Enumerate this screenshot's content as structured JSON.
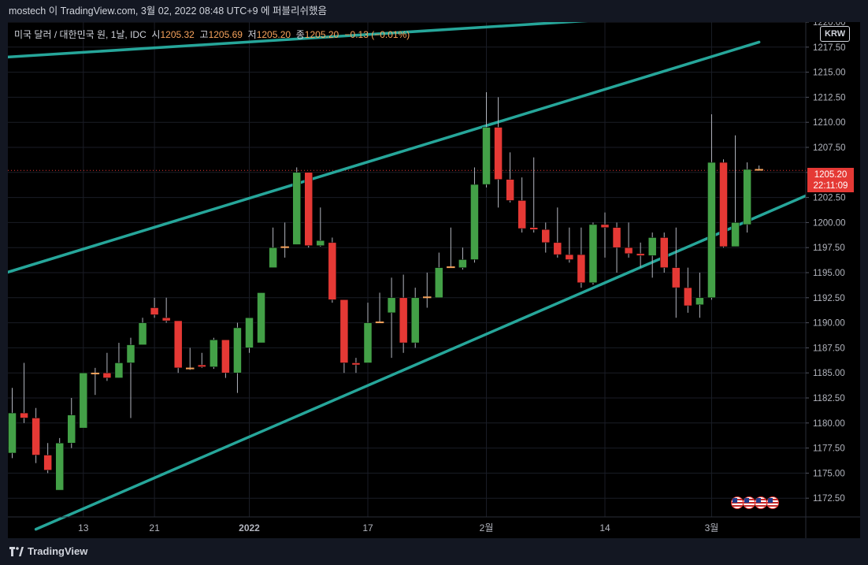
{
  "header": {
    "attribution": "mostech 이 TradingView.com, 3월 02, 2022 08:48 UTC+9 에 퍼블리쉬했음"
  },
  "legend": {
    "symbol": "미국 달러 / 대한민국 원, 1날, IDC",
    "open_label": "시",
    "open": "1205.32",
    "high_label": "고",
    "high": "1205.69",
    "low_label": "저",
    "low": "1205.20",
    "close_label": "종",
    "close": "1205.20",
    "change": "−0.13 (−0.01%)"
  },
  "currency": "KRW",
  "last_price": {
    "price": "1205.20",
    "countdown": "22:11:09"
  },
  "footer": {
    "brand": "TradingView"
  },
  "colors": {
    "up": "#43a047",
    "down": "#e53935",
    "channel": "#26a69a",
    "background": "#000000",
    "frame": "#131722",
    "doji": "#f7a35c"
  },
  "chart_data": {
    "type": "candlestick",
    "y_range": [
      1170.0,
      1220.0
    ],
    "y_ticks": [
      "1172.50",
      "1175.00",
      "1177.50",
      "1180.00",
      "1182.50",
      "1185.00",
      "1187.50",
      "1190.00",
      "1192.50",
      "1195.00",
      "1197.50",
      "1200.00",
      "1202.50",
      "1205.00",
      "1207.50",
      "1210.00",
      "1212.50",
      "1215.00",
      "1217.50",
      "1220.00"
    ],
    "x_ticks": [
      {
        "label": "13",
        "index": 6,
        "bold": false
      },
      {
        "label": "21",
        "index": 12,
        "bold": false
      },
      {
        "label": "2022",
        "index": 20,
        "bold": true
      },
      {
        "label": "17",
        "index": 30,
        "bold": false
      },
      {
        "label": "2월",
        "index": 40,
        "bold": false
      },
      {
        "label": "14",
        "index": 50,
        "bold": false
      },
      {
        "label": "3월",
        "index": 59,
        "bold": false
      }
    ],
    "candles": [
      {
        "o": 1177.0,
        "h": 1183.5,
        "l": 1176.5,
        "c": 1181.0
      },
      {
        "o": 1181.0,
        "h": 1186.0,
        "l": 1180.0,
        "c": 1180.5
      },
      {
        "o": 1180.5,
        "h": 1181.5,
        "l": 1176.0,
        "c": 1176.8
      },
      {
        "o": 1176.8,
        "h": 1178.0,
        "l": 1175.0,
        "c": 1175.3
      },
      {
        "o": 1173.3,
        "h": 1178.5,
        "l": 1173.3,
        "c": 1178.0
      },
      {
        "o": 1178.0,
        "h": 1182.5,
        "l": 1177.5,
        "c": 1180.8
      },
      {
        "o": 1179.5,
        "h": 1185.0,
        "l": 1179.5,
        "c": 1185.0
      },
      {
        "o": 1185.0,
        "h": 1185.5,
        "l": 1182.8,
        "c": 1185.0
      },
      {
        "o": 1185.0,
        "h": 1187.0,
        "l": 1184.2,
        "c": 1184.5
      },
      {
        "o": 1184.5,
        "h": 1188.0,
        "l": 1184.5,
        "c": 1186.0
      },
      {
        "o": 1186.0,
        "h": 1188.5,
        "l": 1180.5,
        "c": 1187.8
      },
      {
        "o": 1187.8,
        "h": 1190.5,
        "l": 1187.8,
        "c": 1190.0
      },
      {
        "o": 1191.5,
        "h": 1192.5,
        "l": 1190.5,
        "c": 1190.8
      },
      {
        "o": 1190.5,
        "h": 1192.5,
        "l": 1190.0,
        "c": 1190.2
      },
      {
        "o": 1190.2,
        "h": 1190.2,
        "l": 1185.0,
        "c": 1185.5
      },
      {
        "o": 1185.5,
        "h": 1187.5,
        "l": 1185.3,
        "c": 1185.4
      },
      {
        "o": 1185.8,
        "h": 1187.0,
        "l": 1185.5,
        "c": 1185.6
      },
      {
        "o": 1185.6,
        "h": 1188.5,
        "l": 1185.4,
        "c": 1188.3
      },
      {
        "o": 1188.3,
        "h": 1188.3,
        "l": 1184.5,
        "c": 1185.0
      },
      {
        "o": 1185.0,
        "h": 1190.0,
        "l": 1183.0,
        "c": 1189.5
      },
      {
        "o": 1187.5,
        "h": 1190.5,
        "l": 1187.0,
        "c": 1190.5
      },
      {
        "o": 1188.0,
        "h": 1193.0,
        "l": 1188.0,
        "c": 1193.0
      },
      {
        "o": 1195.5,
        "h": 1199.5,
        "l": 1195.5,
        "c": 1197.5
      },
      {
        "o": 1197.5,
        "h": 1200.0,
        "l": 1196.5,
        "c": 1197.6
      },
      {
        "o": 1197.8,
        "h": 1205.5,
        "l": 1197.8,
        "c": 1205.0
      },
      {
        "o": 1205.0,
        "h": 1205.0,
        "l": 1197.5,
        "c": 1197.7
      },
      {
        "o": 1197.7,
        "h": 1201.5,
        "l": 1197.6,
        "c": 1198.2
      },
      {
        "o": 1198.0,
        "h": 1198.5,
        "l": 1192.0,
        "c": 1192.3
      },
      {
        "o": 1192.3,
        "h": 1192.3,
        "l": 1185.0,
        "c": 1186.0
      },
      {
        "o": 1186.0,
        "h": 1186.5,
        "l": 1185.0,
        "c": 1185.8
      },
      {
        "o": 1186.0,
        "h": 1192.0,
        "l": 1186.0,
        "c": 1190.0
      },
      {
        "o": 1190.0,
        "h": 1193.0,
        "l": 1190.0,
        "c": 1190.1
      },
      {
        "o": 1191.0,
        "h": 1194.5,
        "l": 1186.5,
        "c": 1192.5
      },
      {
        "o": 1192.5,
        "h": 1194.8,
        "l": 1187.0,
        "c": 1188.0
      },
      {
        "o": 1188.0,
        "h": 1193.5,
        "l": 1187.5,
        "c": 1192.5
      },
      {
        "o": 1192.5,
        "h": 1195.0,
        "l": 1191.5,
        "c": 1192.6
      },
      {
        "o": 1192.5,
        "h": 1197.0,
        "l": 1192.5,
        "c": 1195.5
      },
      {
        "o": 1195.5,
        "h": 1199.5,
        "l": 1195.5,
        "c": 1195.6
      },
      {
        "o": 1195.5,
        "h": 1197.5,
        "l": 1195.3,
        "c": 1196.3
      },
      {
        "o": 1196.3,
        "h": 1205.5,
        "l": 1196.0,
        "c": 1203.8
      },
      {
        "o": 1203.8,
        "h": 1213.0,
        "l": 1203.5,
        "c": 1209.5
      },
      {
        "o": 1209.5,
        "h": 1212.5,
        "l": 1201.5,
        "c": 1204.3
      },
      {
        "o": 1204.3,
        "h": 1207.0,
        "l": 1202.0,
        "c": 1202.2
      },
      {
        "o": 1202.2,
        "h": 1204.5,
        "l": 1199.0,
        "c": 1199.4
      },
      {
        "o": 1199.5,
        "h": 1206.5,
        "l": 1199.0,
        "c": 1199.3
      },
      {
        "o": 1199.3,
        "h": 1200.0,
        "l": 1197.0,
        "c": 1198.0
      },
      {
        "o": 1198.0,
        "h": 1201.5,
        "l": 1196.5,
        "c": 1196.8
      },
      {
        "o": 1196.8,
        "h": 1199.5,
        "l": 1196.0,
        "c": 1196.3
      },
      {
        "o": 1196.8,
        "h": 1199.5,
        "l": 1193.5,
        "c": 1194.0
      },
      {
        "o": 1194.0,
        "h": 1200.0,
        "l": 1193.8,
        "c": 1199.8
      },
      {
        "o": 1199.8,
        "h": 1201.0,
        "l": 1196.5,
        "c": 1199.5
      },
      {
        "o": 1199.5,
        "h": 1200.0,
        "l": 1195.0,
        "c": 1197.5
      },
      {
        "o": 1197.5,
        "h": 1200.0,
        "l": 1196.5,
        "c": 1196.9
      },
      {
        "o": 1196.9,
        "h": 1198.0,
        "l": 1195.5,
        "c": 1196.7
      },
      {
        "o": 1196.7,
        "h": 1199.0,
        "l": 1194.5,
        "c": 1198.5
      },
      {
        "o": 1198.5,
        "h": 1199.0,
        "l": 1195.0,
        "c": 1195.5
      },
      {
        "o": 1195.5,
        "h": 1199.5,
        "l": 1190.5,
        "c": 1193.5
      },
      {
        "o": 1193.5,
        "h": 1195.5,
        "l": 1191.0,
        "c": 1191.7
      },
      {
        "o": 1191.8,
        "h": 1195.0,
        "l": 1190.5,
        "c": 1192.5
      },
      {
        "o": 1192.5,
        "h": 1210.8,
        "l": 1192.3,
        "c": 1206.0
      },
      {
        "o": 1206.0,
        "h": 1206.3,
        "l": 1197.5,
        "c": 1197.6
      },
      {
        "o": 1197.6,
        "h": 1208.7,
        "l": 1197.6,
        "c": 1200.0
      },
      {
        "o": 1199.8,
        "h": 1206.0,
        "l": 1199.0,
        "c": 1205.3
      },
      {
        "o": 1205.32,
        "h": 1205.69,
        "l": 1205.2,
        "c": 1205.2
      }
    ],
    "channel_lines": [
      {
        "name": "upper",
        "from": {
          "index": -0.5,
          "price": 1216.5
        },
        "to": {
          "index": 57.5,
          "price": 1220.8
        }
      },
      {
        "name": "lower-a",
        "from": {
          "index": -0.5,
          "price": 1195.0
        },
        "to": {
          "index": 63.0,
          "price": 1218.0
        }
      },
      {
        "name": "lower-b",
        "from": {
          "index": 2.0,
          "price": 1169.4
        },
        "to": {
          "index": 67.0,
          "price": 1202.7
        }
      }
    ],
    "grid": true
  }
}
